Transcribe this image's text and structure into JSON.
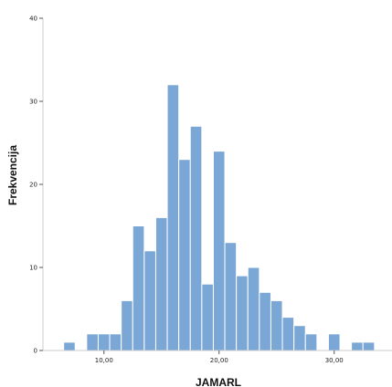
{
  "chart_data": {
    "type": "bar",
    "title": "",
    "xlabel": "JAMARL",
    "ylabel": "Frekvencija",
    "bin_width": 1,
    "bins": [
      {
        "x": 7,
        "count": 1
      },
      {
        "x": 9,
        "count": 2
      },
      {
        "x": 10,
        "count": 2
      },
      {
        "x": 11,
        "count": 2
      },
      {
        "x": 12,
        "count": 6
      },
      {
        "x": 13,
        "count": 15
      },
      {
        "x": 14,
        "count": 12
      },
      {
        "x": 15,
        "count": 16
      },
      {
        "x": 16,
        "count": 32
      },
      {
        "x": 17,
        "count": 23
      },
      {
        "x": 18,
        "count": 27
      },
      {
        "x": 19,
        "count": 8
      },
      {
        "x": 20,
        "count": 24
      },
      {
        "x": 21,
        "count": 13
      },
      {
        "x": 22,
        "count": 9
      },
      {
        "x": 23,
        "count": 10
      },
      {
        "x": 24,
        "count": 7
      },
      {
        "x": 25,
        "count": 6
      },
      {
        "x": 26,
        "count": 4
      },
      {
        "x": 27,
        "count": 3
      },
      {
        "x": 28,
        "count": 2
      },
      {
        "x": 30,
        "count": 2
      },
      {
        "x": 32,
        "count": 1
      },
      {
        "x": 33,
        "count": 1
      }
    ],
    "xlim": [
      4.7,
      35.1
    ],
    "ylim": [
      0,
      40
    ],
    "x_ticks": [
      10,
      20,
      30
    ],
    "x_tick_labels": [
      "10,00",
      "20,00",
      "30,00"
    ],
    "y_ticks": [
      0,
      10,
      20,
      30,
      40
    ],
    "y_tick_labels": [
      "0",
      "10",
      "20",
      "30",
      "40"
    ],
    "bar_color": "#7ba7d7",
    "grid": false
  }
}
